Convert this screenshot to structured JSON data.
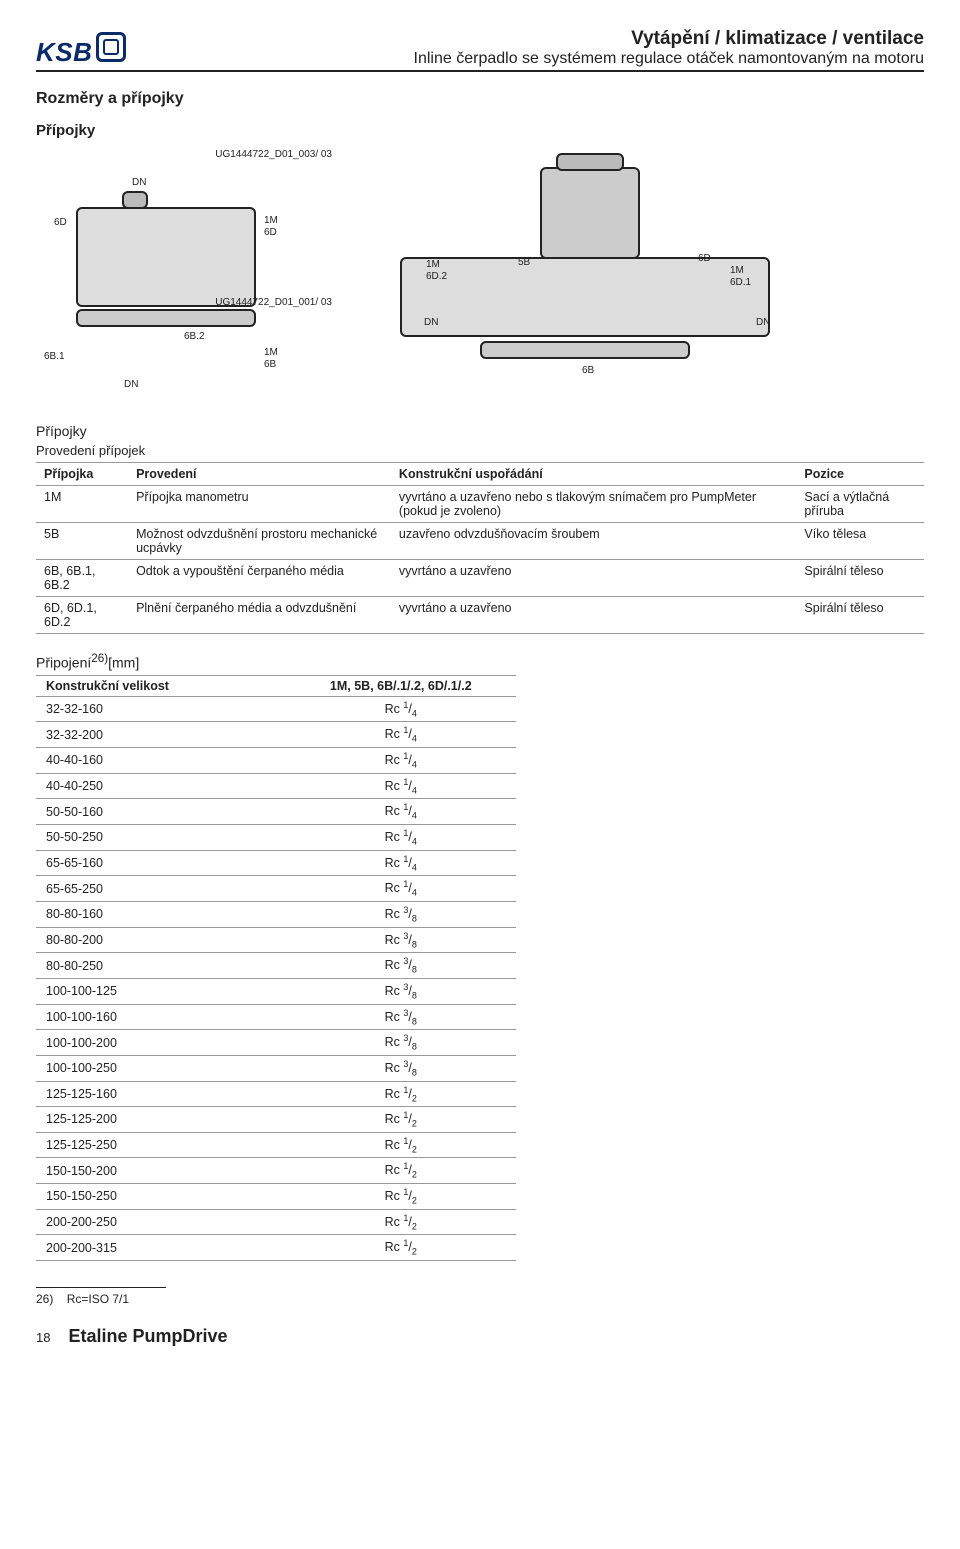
{
  "header": {
    "logo_text": "KSB",
    "title1": "Vytápění / klimatizace / ventilace",
    "title2": "Inline čerpadlo se systémem regulace otáček namontovaným na motoru"
  },
  "section_title": "Rozměry a přípojky",
  "subsection_title": "Přípojky",
  "diagram_left": {
    "code_top": "UG1444722_D01_003/ 03",
    "code_mid": "UG1444722_D01_001/ 03",
    "labels": {
      "dn_top": "DN",
      "six_d": "6D",
      "one_m": "1M",
      "six_d2": "6D",
      "six_b1_1": "6B.1",
      "six_b2": "6B.2",
      "one_m2": "1M",
      "six_b": "6B",
      "dn_bottom": "DN"
    }
  },
  "diagram_right": {
    "labels": {
      "one_m_6d2": "1M",
      "six_d2": "6D.2",
      "five_b": "5B",
      "six_d": "6D",
      "one_m_6d1": "1M",
      "six_d1": "6D.1",
      "dn_l": "DN",
      "dn_r": "DN",
      "six_b": "6B"
    }
  },
  "table1": {
    "caption": "Přípojky",
    "subtitle": "Provedení přípojek",
    "headers": [
      "Přípojka",
      "Provedení",
      "Konstrukční uspořádání",
      "Pozice"
    ],
    "rows": [
      {
        "c1": "1M",
        "c2": "Přípojka manometru",
        "c3": "vyvrtáno a uzavřeno nebo s tlakovým snímačem pro PumpMeter (pokud je zvoleno)",
        "c4": "Sací a výtlačná příruba"
      },
      {
        "c1": "5B",
        "c2": "Možnost odvzdušnění prostoru mechanické ucpávky",
        "c3": "uzavřeno odvzdušňovacím šroubem",
        "c4": "Víko tělesa"
      },
      {
        "c1": "6B, 6B.1, 6B.2",
        "c2": "Odtok a vypouštění čerpaného média",
        "c3": "vyvrtáno a uzavřeno",
        "c4": "Spirální těleso"
      },
      {
        "c1": "6D, 6D.1, 6D.2",
        "c2": "Plnění čerpaného média a odvzdušnění",
        "c3": "vyvrtáno a uzavřeno",
        "c4": "Spirální těleso"
      }
    ]
  },
  "table2": {
    "title_html": "Připojení<sup>26)</sup>[mm]",
    "title_main": "Připojení",
    "title_sup": "26)",
    "title_unit": "[mm]",
    "headers": [
      "Konstrukční velikost",
      "1M, 5B, 6B/.1/.2, 6D/.1/.2"
    ],
    "rows": [
      {
        "size": "32-32-160",
        "num": "1",
        "den": "4"
      },
      {
        "size": "32-32-200",
        "num": "1",
        "den": "4"
      },
      {
        "size": "40-40-160",
        "num": "1",
        "den": "4"
      },
      {
        "size": "40-40-250",
        "num": "1",
        "den": "4"
      },
      {
        "size": "50-50-160",
        "num": "1",
        "den": "4"
      },
      {
        "size": "50-50-250",
        "num": "1",
        "den": "4"
      },
      {
        "size": "65-65-160",
        "num": "1",
        "den": "4"
      },
      {
        "size": "65-65-250",
        "num": "1",
        "den": "4"
      },
      {
        "size": "80-80-160",
        "num": "3",
        "den": "8"
      },
      {
        "size": "80-80-200",
        "num": "3",
        "den": "8"
      },
      {
        "size": "80-80-250",
        "num": "3",
        "den": "8"
      },
      {
        "size": "100-100-125",
        "num": "3",
        "den": "8"
      },
      {
        "size": "100-100-160",
        "num": "3",
        "den": "8"
      },
      {
        "size": "100-100-200",
        "num": "3",
        "den": "8"
      },
      {
        "size": "100-100-250",
        "num": "3",
        "den": "8"
      },
      {
        "size": "125-125-160",
        "num": "1",
        "den": "2"
      },
      {
        "size": "125-125-200",
        "num": "1",
        "den": "2"
      },
      {
        "size": "125-125-250",
        "num": "1",
        "den": "2"
      },
      {
        "size": "150-150-200",
        "num": "1",
        "den": "2"
      },
      {
        "size": "150-150-250",
        "num": "1",
        "den": "2"
      },
      {
        "size": "200-200-250",
        "num": "1",
        "den": "2"
      },
      {
        "size": "200-200-315",
        "num": "1",
        "den": "2"
      }
    ]
  },
  "footnote": {
    "mark": "26)",
    "text": "Rc=ISO 7/1"
  },
  "footer": {
    "page": "18",
    "title": "Etaline PumpDrive"
  }
}
